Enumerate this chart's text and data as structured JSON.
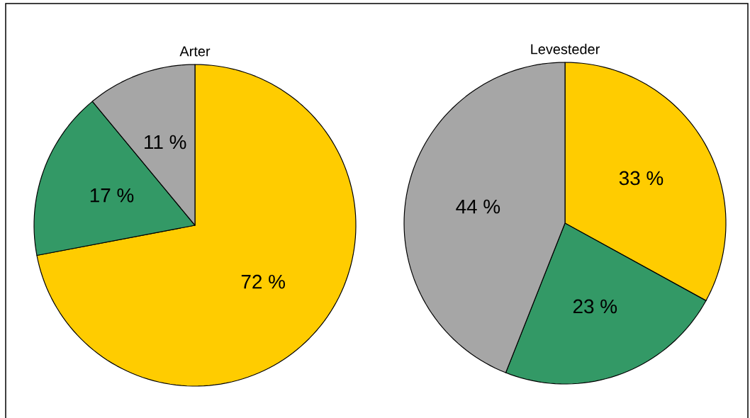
{
  "chart_data": [
    {
      "type": "pie",
      "title": "Arter",
      "categories": [
        null,
        null,
        null
      ],
      "values": [
        72,
        17,
        11
      ],
      "colors": [
        "#ffcc00",
        "#339966",
        "#a6a6a6"
      ],
      "value_labels": [
        "72 %",
        "17 %",
        "11 %"
      ]
    },
    {
      "type": "pie",
      "title": "Levesteder",
      "categories": [
        null,
        null,
        null
      ],
      "values": [
        33,
        23,
        44
      ],
      "colors": [
        "#ffcc00",
        "#339966",
        "#a6a6a6"
      ],
      "value_labels": [
        "33 %",
        "23 %",
        "44 %"
      ]
    }
  ]
}
